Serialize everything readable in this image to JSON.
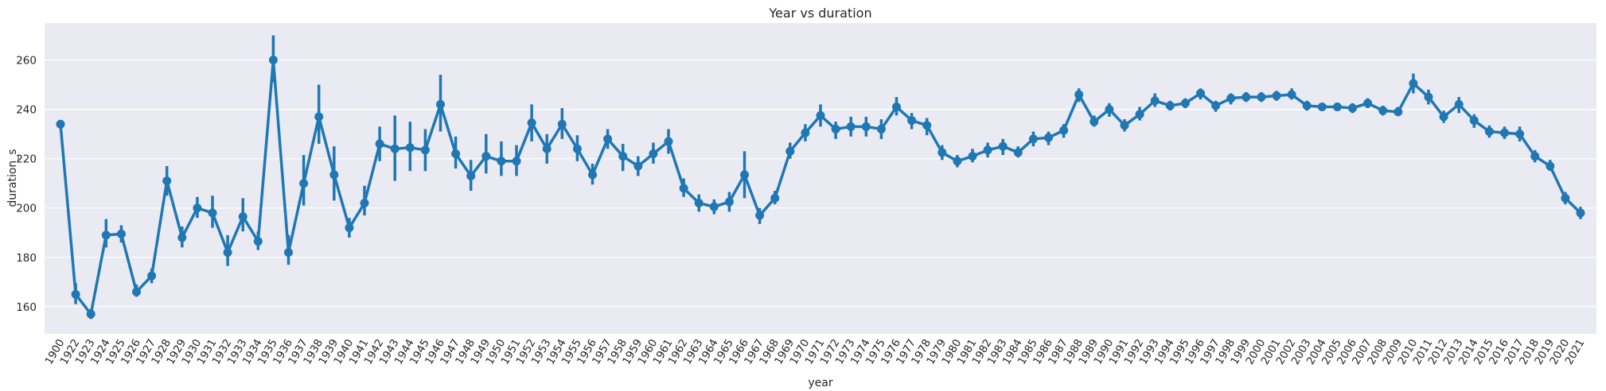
{
  "chart_data": {
    "type": "line",
    "title": "Year vs duration",
    "xlabel": "year",
    "ylabel": "duration_s",
    "ylim": [
      149,
      275
    ],
    "yticks": [
      160,
      180,
      200,
      220,
      240,
      260
    ],
    "grid": true,
    "legend": "none",
    "colors": {
      "line": "#1f77b4",
      "background": "#eaeaf2",
      "grid": "#ffffff",
      "text": "#262626"
    },
    "series": [
      {
        "categories": [
          "1900",
          "1922",
          "1923",
          "1924",
          "1925",
          "1926",
          "1927",
          "1928",
          "1929",
          "1930",
          "1931",
          "1932",
          "1933",
          "1934",
          "1935",
          "1936",
          "1937",
          "1938",
          "1939",
          "1940",
          "1941",
          "1942",
          "1943",
          "1944",
          "1945",
          "1946",
          "1947",
          "1948",
          "1949",
          "1950",
          "1951",
          "1952",
          "1953",
          "1954",
          "1955",
          "1956",
          "1957",
          "1958",
          "1959",
          "1960",
          "1961",
          "1962",
          "1963",
          "1964",
          "1965",
          "1966",
          "1967",
          "1968",
          "1969",
          "1970",
          "1971",
          "1972",
          "1973",
          "1974",
          "1975",
          "1976",
          "1977",
          "1978",
          "1979",
          "1980",
          "1981",
          "1982",
          "1983",
          "1984",
          "1985",
          "1986",
          "1987",
          "1988",
          "1989",
          "1990",
          "1991",
          "1992",
          "1993",
          "1994",
          "1995",
          "1996",
          "1997",
          "1998",
          "1999",
          "2000",
          "2001",
          "2002",
          "2003",
          "2004",
          "2005",
          "2006",
          "2007",
          "2008",
          "2009",
          "2010",
          "2011",
          "2012",
          "2013",
          "2014",
          "2015",
          "2016",
          "2017",
          "2018",
          "2019",
          "2020",
          "2021"
        ],
        "values": [
          234,
          165,
          157,
          189,
          189.5,
          166,
          172.5,
          211,
          188,
          200,
          198,
          182,
          196.5,
          186.5,
          260,
          182,
          210,
          237,
          213.5,
          192,
          202,
          226,
          224,
          224.5,
          223.5,
          242,
          222,
          213,
          221,
          219,
          219,
          234.5,
          224,
          234,
          224,
          213.5,
          228,
          221,
          217,
          222,
          227,
          208,
          202,
          200.5,
          202.5,
          213.5,
          197,
          204,
          223,
          230.5,
          237.5,
          232,
          233,
          233,
          232,
          241,
          235.5,
          233.5,
          222.5,
          219,
          221,
          223.5,
          225,
          222.5,
          228,
          228.5,
          231.5,
          246,
          235,
          240,
          233.5,
          238,
          243.5,
          241.5,
          242.5,
          246.5,
          241.5,
          244.5,
          245,
          245,
          245.5,
          246,
          241.5,
          241,
          241,
          240.5,
          242.5,
          239.5,
          239,
          250.5,
          245,
          237,
          242,
          235.5,
          231,
          230.5,
          230,
          221,
          217,
          204,
          198
        ],
        "ci_low": [
          234,
          161,
          155,
          184,
          186,
          164,
          169.5,
          205,
          184,
          196,
          192,
          176.5,
          190.5,
          183,
          251,
          177,
          201,
          226,
          203,
          188,
          197,
          219,
          211,
          215,
          215,
          231,
          216,
          207,
          214,
          213,
          213,
          227,
          218,
          228,
          219,
          209.5,
          224,
          215,
          213,
          218,
          222,
          204.5,
          198.5,
          197.5,
          198.5,
          204,
          193.5,
          201.5,
          220,
          227,
          233,
          228,
          229,
          229,
          228,
          237.5,
          232,
          229.5,
          219.5,
          216.5,
          218.5,
          220.5,
          221.5,
          220.5,
          225,
          225.5,
          228.5,
          243,
          233,
          237,
          231,
          235.5,
          241,
          239.5,
          240.5,
          244,
          239,
          242,
          243,
          243,
          243.5,
          244,
          239.5,
          239.5,
          239.5,
          238.5,
          240.5,
          237.5,
          237.5,
          246.5,
          242,
          234.5,
          238.5,
          232.5,
          228.5,
          228,
          227,
          218.5,
          215,
          201.5,
          195.5
        ],
        "ci_high": [
          234,
          169.5,
          159,
          195.5,
          193,
          169,
          175.5,
          217,
          192.5,
          204.5,
          205,
          189,
          204,
          190.5,
          270,
          189,
          221.5,
          250,
          225,
          196,
          209,
          233,
          237.5,
          235,
          232,
          254,
          229,
          219.5,
          230,
          227,
          225.5,
          242,
          230,
          240.5,
          229.5,
          218,
          232,
          226,
          221,
          226.5,
          232,
          212,
          205.5,
          203.5,
          206.5,
          223,
          200,
          207,
          226.5,
          234,
          242,
          235,
          237,
          237,
          236,
          245,
          238.5,
          236.5,
          225.5,
          221.5,
          224,
          226.5,
          228,
          225,
          231,
          231,
          234,
          248.5,
          237.5,
          242.5,
          236,
          241,
          246.5,
          243.5,
          244.5,
          248.5,
          243.5,
          246.5,
          247,
          247,
          247.5,
          248.5,
          243.5,
          242.5,
          242.5,
          242.5,
          244.5,
          241.5,
          241,
          254.5,
          248,
          239.5,
          245,
          238,
          233.5,
          233,
          233,
          223.5,
          219.5,
          206.5,
          200.5
        ]
      }
    ]
  }
}
